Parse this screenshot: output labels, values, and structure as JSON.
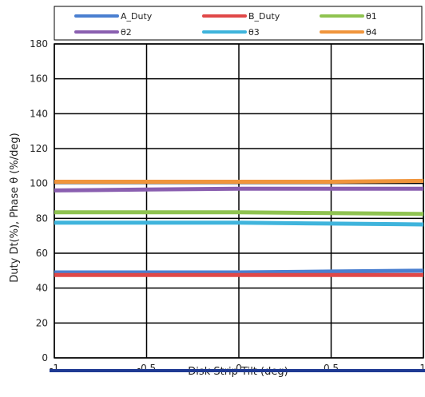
{
  "chart_data": {
    "type": "line",
    "xlabel": "Disk Strip Tilt (deg)",
    "ylabel": "Duty Dt(%), Phase θ (%/deg)",
    "xlim": [
      -1,
      1
    ],
    "ylim": [
      0,
      180
    ],
    "x_ticks": [
      "-1",
      "-0.5",
      "0",
      "0.5",
      "1"
    ],
    "y_ticks": [
      "0",
      "20",
      "40",
      "60",
      "80",
      "100",
      "120",
      "140",
      "160",
      "180"
    ],
    "grid": true,
    "legend_position": "top",
    "x": [
      -1,
      -0.5,
      0,
      0.5,
      1
    ],
    "series": [
      {
        "name": "A_Duty",
        "color": "#4a7fd0",
        "values": [
          49,
          49,
          49,
          49.5,
          50
        ]
      },
      {
        "name": "B_Duty",
        "color": "#e04848",
        "values": [
          47.5,
          47.5,
          47.5,
          47.5,
          47.5
        ]
      },
      {
        "name": "θ1",
        "color": "#8fc350",
        "values": [
          83.5,
          83.5,
          83.5,
          83,
          82.5
        ]
      },
      {
        "name": "θ2",
        "color": "#8a5fb0",
        "values": [
          96,
          96.5,
          97,
          97,
          97
        ]
      },
      {
        "name": "θ3",
        "color": "#3fb4dc",
        "values": [
          77.5,
          77.5,
          77.5,
          77,
          76.5
        ]
      },
      {
        "name": "θ4",
        "color": "#f0953c",
        "values": [
          101,
          101,
          101,
          101,
          101.5
        ]
      }
    ],
    "footer_bar_color": "#1f3a93"
  }
}
